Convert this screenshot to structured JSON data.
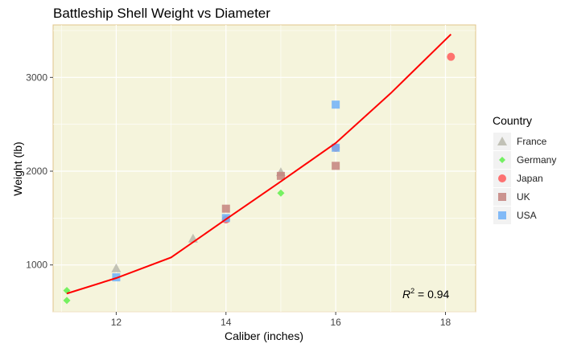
{
  "chart_data": {
    "type": "scatter",
    "title": "Battleship Shell Weight vs Diameter",
    "xlabel": "Caliber (inches)",
    "ylabel": "Weight (lb)",
    "xlim": [
      10.85,
      18.55
    ],
    "ylim": [
      500,
      3560
    ],
    "xticks": [
      12,
      14,
      16,
      18
    ],
    "yticks": [
      1000,
      2000,
      3000
    ],
    "grid": true,
    "legend": {
      "title": "Country",
      "placement": "right"
    },
    "series": [
      {
        "name": "France",
        "color": "#b8b8ac",
        "shape": "triangle",
        "points": [
          [
            12,
            965
          ],
          [
            13.4,
            1282
          ],
          [
            15,
            1990
          ]
        ]
      },
      {
        "name": "Germany",
        "color": "#5ef04a",
        "shape": "diamond",
        "points": [
          [
            11.1,
            727
          ],
          [
            11.1,
            621
          ],
          [
            15,
            1766
          ]
        ]
      },
      {
        "name": "Japan",
        "color": "#ff5a5a",
        "shape": "circle",
        "points": [
          [
            14,
            1485
          ],
          [
            16,
            2250
          ],
          [
            18.1,
            3220
          ]
        ]
      },
      {
        "name": "UK",
        "color": "#c4827e",
        "shape": "square",
        "points": [
          [
            14,
            1600
          ],
          [
            15,
            1950
          ],
          [
            16,
            2057
          ]
        ]
      },
      {
        "name": "USA",
        "color": "#6fb0f8",
        "shape": "square",
        "points": [
          [
            12,
            868
          ],
          [
            14,
            1500
          ],
          [
            16,
            2710
          ],
          [
            16,
            2250
          ]
        ]
      }
    ],
    "fit_line": {
      "color": "#ff0000",
      "points": [
        [
          11.1,
          695
        ],
        [
          12,
          860
        ],
        [
          13,
          1080
        ],
        [
          14,
          1487
        ],
        [
          15,
          1890
        ],
        [
          16,
          2300
        ],
        [
          17,
          2830
        ],
        [
          18.1,
          3460
        ]
      ]
    },
    "annotation": {
      "label": "R",
      "superscript": "2",
      "text": " = 0.94"
    }
  }
}
